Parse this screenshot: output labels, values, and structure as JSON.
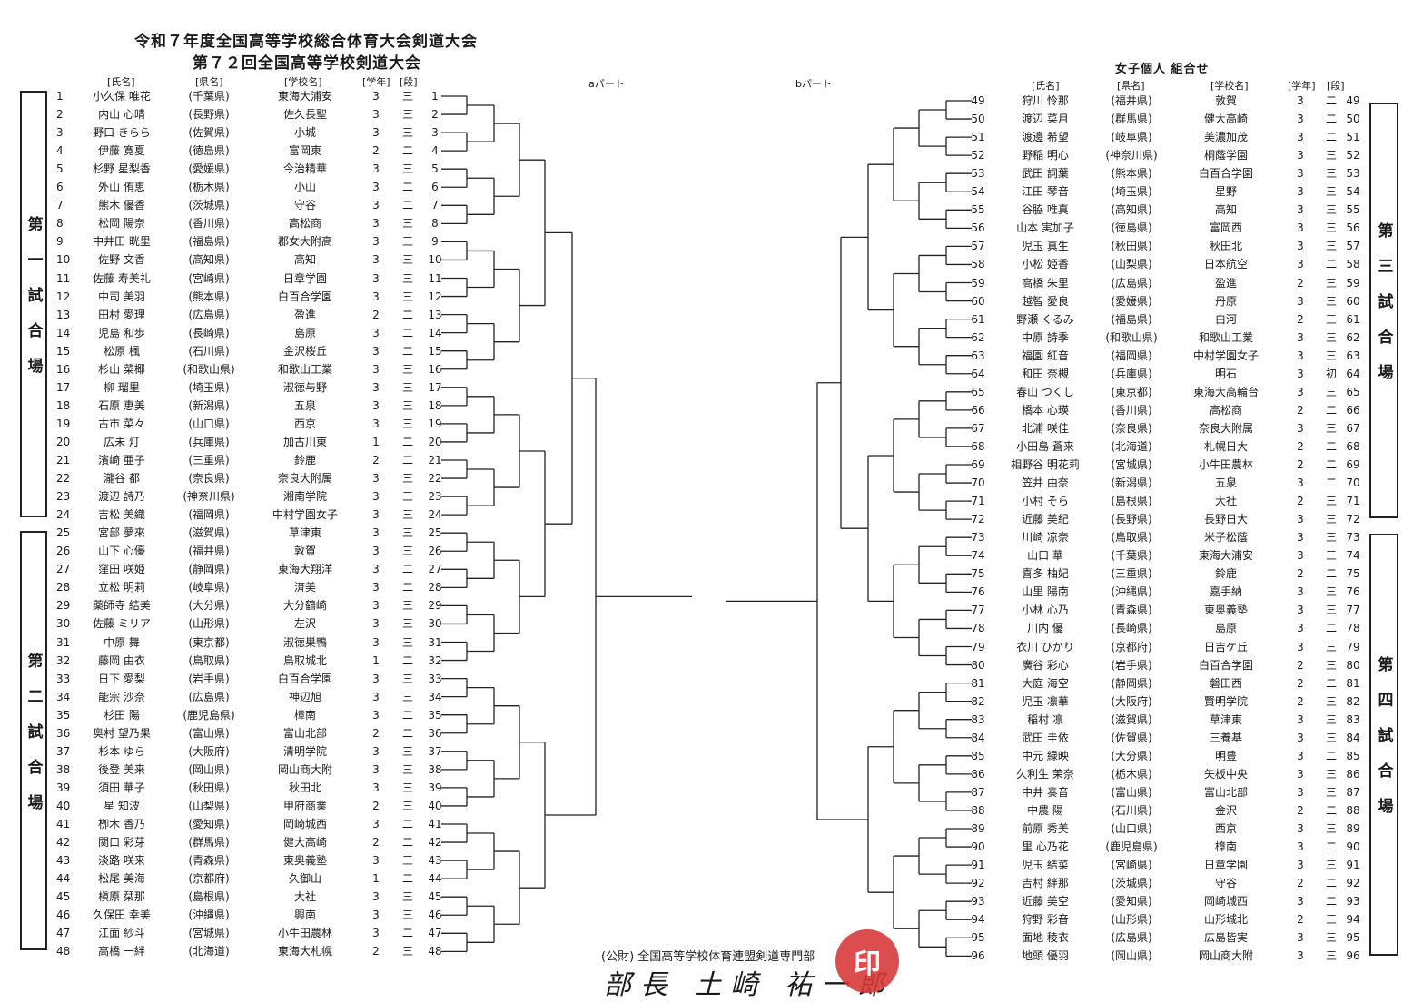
{
  "title_line1": "令和７年度全国高等学校総合体育大会剣道大会",
  "title_line2": "第７２回全国高等学校剣道大会",
  "right_title": "女子個人 組合せ",
  "headers": {
    "name": "[氏名]",
    "pref": "[県名]",
    "school": "[学校名]",
    "grade": "[学年]",
    "dan": "[段]"
  },
  "part_a": "aパート",
  "part_b": "bパート",
  "courts": [
    "第一試合場",
    "第二試合場",
    "第三試合場",
    "第四試合場"
  ],
  "footer": "(公財) 全国高等学校体育連盟剣道専門部",
  "signature": "部長 土崎 祐一郎",
  "entries": [
    {
      "n": "1",
      "name": "小久保 唯花",
      "pref": "(千葉県)",
      "school": "東海大浦安",
      "grade": "3",
      "dan": "三"
    },
    {
      "n": "2",
      "name": "内山 心晴",
      "pref": "(長野県)",
      "school": "佐久長聖",
      "grade": "3",
      "dan": "三"
    },
    {
      "n": "3",
      "name": "野口 きらら",
      "pref": "(佐賀県)",
      "school": "小城",
      "grade": "3",
      "dan": "三"
    },
    {
      "n": "4",
      "name": "伊藤 寛夏",
      "pref": "(徳島県)",
      "school": "富岡東",
      "grade": "2",
      "dan": "二"
    },
    {
      "n": "5",
      "name": "杉野 星梨香",
      "pref": "(愛媛県)",
      "school": "今治精華",
      "grade": "3",
      "dan": "三"
    },
    {
      "n": "6",
      "name": "外山 侑恵",
      "pref": "(栃木県)",
      "school": "小山",
      "grade": "3",
      "dan": "二"
    },
    {
      "n": "7",
      "name": "熊木 優香",
      "pref": "(茨城県)",
      "school": "守谷",
      "grade": "3",
      "dan": "二"
    },
    {
      "n": "8",
      "name": "松岡 陽奈",
      "pref": "(香川県)",
      "school": "高松商",
      "grade": "3",
      "dan": "三"
    },
    {
      "n": "9",
      "name": "中井田 晄里",
      "pref": "(福島県)",
      "school": "郡女大附高",
      "grade": "3",
      "dan": "三"
    },
    {
      "n": "10",
      "name": "佐野 文香",
      "pref": "(高知県)",
      "school": "高知",
      "grade": "3",
      "dan": "三"
    },
    {
      "n": "11",
      "name": "佐藤 寿美礼",
      "pref": "(宮崎県)",
      "school": "日章学園",
      "grade": "3",
      "dan": "三"
    },
    {
      "n": "12",
      "name": "中司 美羽",
      "pref": "(熊本県)",
      "school": "白百合学園",
      "grade": "3",
      "dan": "三"
    },
    {
      "n": "13",
      "name": "田村 愛理",
      "pref": "(広島県)",
      "school": "盈進",
      "grade": "2",
      "dan": "二"
    },
    {
      "n": "14",
      "name": "児島 和歩",
      "pref": "(長崎県)",
      "school": "島原",
      "grade": "3",
      "dan": "二"
    },
    {
      "n": "15",
      "name": "松原 楓",
      "pref": "(石川県)",
      "school": "金沢桜丘",
      "grade": "3",
      "dan": "二"
    },
    {
      "n": "16",
      "name": "杉山 菜椰",
      "pref": "(和歌山県)",
      "school": "和歌山工業",
      "grade": "3",
      "dan": "三"
    },
    {
      "n": "17",
      "name": "柳 瑠里",
      "pref": "(埼玉県)",
      "school": "淑徳与野",
      "grade": "3",
      "dan": "三"
    },
    {
      "n": "18",
      "name": "石原 恵美",
      "pref": "(新潟県)",
      "school": "五泉",
      "grade": "3",
      "dan": "三"
    },
    {
      "n": "19",
      "name": "古市 菜々",
      "pref": "(山口県)",
      "school": "西京",
      "grade": "3",
      "dan": "三"
    },
    {
      "n": "20",
      "name": "広未 灯",
      "pref": "(兵庫県)",
      "school": "加古川東",
      "grade": "1",
      "dan": "二"
    },
    {
      "n": "21",
      "name": "濱崎 亜子",
      "pref": "(三重県)",
      "school": "鈴鹿",
      "grade": "2",
      "dan": "二"
    },
    {
      "n": "22",
      "name": "瀧谷 都",
      "pref": "(奈良県)",
      "school": "奈良大附属",
      "grade": "3",
      "dan": "三"
    },
    {
      "n": "23",
      "name": "渡辺 詩乃",
      "pref": "(神奈川県)",
      "school": "湘南学院",
      "grade": "3",
      "dan": "三"
    },
    {
      "n": "24",
      "name": "吉松 美織",
      "pref": "(福岡県)",
      "school": "中村学園女子",
      "grade": "3",
      "dan": "三"
    },
    {
      "n": "25",
      "name": "宮部 夢來",
      "pref": "(滋賀県)",
      "school": "草津東",
      "grade": "3",
      "dan": "三"
    },
    {
      "n": "26",
      "name": "山下 心優",
      "pref": "(福井県)",
      "school": "敦賀",
      "grade": "3",
      "dan": "三"
    },
    {
      "n": "27",
      "name": "窪田 咲姫",
      "pref": "(静岡県)",
      "school": "東海大翔洋",
      "grade": "3",
      "dan": "二"
    },
    {
      "n": "28",
      "name": "立松 明莉",
      "pref": "(岐阜県)",
      "school": "済美",
      "grade": "3",
      "dan": "二"
    },
    {
      "n": "29",
      "name": "薬師寺 結美",
      "pref": "(大分県)",
      "school": "大分鶴崎",
      "grade": "3",
      "dan": "三"
    },
    {
      "n": "30",
      "name": "佐藤 ミリア",
      "pref": "(山形県)",
      "school": "左沢",
      "grade": "3",
      "dan": "三"
    },
    {
      "n": "31",
      "name": "中原 舞",
      "pref": "(東京都)",
      "school": "淑徳巣鴨",
      "grade": "3",
      "dan": "三"
    },
    {
      "n": "32",
      "name": "藤岡 由衣",
      "pref": "(鳥取県)",
      "school": "鳥取城北",
      "grade": "1",
      "dan": "二"
    },
    {
      "n": "33",
      "name": "日下 愛梨",
      "pref": "(岩手県)",
      "school": "白百合学園",
      "grade": "3",
      "dan": "三"
    },
    {
      "n": "34",
      "name": "能宗 沙奈",
      "pref": "(広島県)",
      "school": "神辺旭",
      "grade": "3",
      "dan": "三"
    },
    {
      "n": "35",
      "name": "杉田 陽",
      "pref": "(鹿児島県)",
      "school": "樟南",
      "grade": "3",
      "dan": "二"
    },
    {
      "n": "36",
      "name": "奥村 望乃果",
      "pref": "(富山県)",
      "school": "富山北部",
      "grade": "2",
      "dan": "二"
    },
    {
      "n": "37",
      "name": "杉本 ゆら",
      "pref": "(大阪府)",
      "school": "清明学院",
      "grade": "3",
      "dan": "三"
    },
    {
      "n": "38",
      "name": "後登 美来",
      "pref": "(岡山県)",
      "school": "岡山商大附",
      "grade": "3",
      "dan": "三"
    },
    {
      "n": "39",
      "name": "須田 華子",
      "pref": "(秋田県)",
      "school": "秋田北",
      "grade": "3",
      "dan": "三"
    },
    {
      "n": "40",
      "name": "星 知波",
      "pref": "(山梨県)",
      "school": "甲府商業",
      "grade": "2",
      "dan": "三"
    },
    {
      "n": "41",
      "name": "栁木 香乃",
      "pref": "(愛知県)",
      "school": "岡崎城西",
      "grade": "3",
      "dan": "二"
    },
    {
      "n": "42",
      "name": "関口 彩芽",
      "pref": "(群馬県)",
      "school": "健大高崎",
      "grade": "2",
      "dan": "二"
    },
    {
      "n": "43",
      "name": "淡路 咲来",
      "pref": "(青森県)",
      "school": "東奥義塾",
      "grade": "3",
      "dan": "三"
    },
    {
      "n": "44",
      "name": "松尾 美海",
      "pref": "(京都府)",
      "school": "久御山",
      "grade": "1",
      "dan": "二"
    },
    {
      "n": "45",
      "name": "槇原 栞那",
      "pref": "(島根県)",
      "school": "大社",
      "grade": "3",
      "dan": "三"
    },
    {
      "n": "46",
      "name": "久保田 幸美",
      "pref": "(沖縄県)",
      "school": "興南",
      "grade": "3",
      "dan": "三"
    },
    {
      "n": "47",
      "name": "江面 紗斗",
      "pref": "(宮城県)",
      "school": "小牛田農林",
      "grade": "3",
      "dan": "二"
    },
    {
      "n": "48",
      "name": "高橋 一絆",
      "pref": "(北海道)",
      "school": "東海大札幌",
      "grade": "2",
      "dan": "三"
    },
    {
      "n": "49",
      "name": "狩川 怜那",
      "pref": "(福井県)",
      "school": "敦賀",
      "grade": "3",
      "dan": "二"
    },
    {
      "n": "50",
      "name": "渡辺 菜月",
      "pref": "(群馬県)",
      "school": "健大高崎",
      "grade": "3",
      "dan": "二"
    },
    {
      "n": "51",
      "name": "渡邊 希望",
      "pref": "(岐阜県)",
      "school": "美濃加茂",
      "grade": "3",
      "dan": "二"
    },
    {
      "n": "52",
      "name": "野稲 明心",
      "pref": "(神奈川県)",
      "school": "桐蔭学園",
      "grade": "3",
      "dan": "三"
    },
    {
      "n": "53",
      "name": "武田 詞葉",
      "pref": "(熊本県)",
      "school": "白百合学園",
      "grade": "3",
      "dan": "三"
    },
    {
      "n": "54",
      "name": "江田 琴音",
      "pref": "(埼玉県)",
      "school": "星野",
      "grade": "3",
      "dan": "三"
    },
    {
      "n": "55",
      "name": "谷脇 唯真",
      "pref": "(高知県)",
      "school": "高知",
      "grade": "3",
      "dan": "三"
    },
    {
      "n": "56",
      "name": "山本 実加子",
      "pref": "(徳島県)",
      "school": "富岡西",
      "grade": "3",
      "dan": "三"
    },
    {
      "n": "57",
      "name": "児玉 真生",
      "pref": "(秋田県)",
      "school": "秋田北",
      "grade": "3",
      "dan": "三"
    },
    {
      "n": "58",
      "name": "小松 姫香",
      "pref": "(山梨県)",
      "school": "日本航空",
      "grade": "3",
      "dan": "二"
    },
    {
      "n": "59",
      "name": "高橋 朱里",
      "pref": "(広島県)",
      "school": "盈進",
      "grade": "2",
      "dan": "三"
    },
    {
      "n": "60",
      "name": "越智 愛良",
      "pref": "(愛媛県)",
      "school": "丹原",
      "grade": "3",
      "dan": "三"
    },
    {
      "n": "61",
      "name": "野瀬 くるみ",
      "pref": "(福島県)",
      "school": "白河",
      "grade": "2",
      "dan": "三"
    },
    {
      "n": "62",
      "name": "中原 詩季",
      "pref": "(和歌山県)",
      "school": "和歌山工業",
      "grade": "3",
      "dan": "三"
    },
    {
      "n": "63",
      "name": "福園 紅音",
      "pref": "(福岡県)",
      "school": "中村学園女子",
      "grade": "3",
      "dan": "三"
    },
    {
      "n": "64",
      "name": "和田 奈槻",
      "pref": "(兵庫県)",
      "school": "明石",
      "grade": "3",
      "dan": "初"
    },
    {
      "n": "65",
      "name": "春山 つくし",
      "pref": "(東京都)",
      "school": "東海大高輪台",
      "grade": "3",
      "dan": "三"
    },
    {
      "n": "66",
      "name": "橋本 心瑛",
      "pref": "(香川県)",
      "school": "高松商",
      "grade": "2",
      "dan": "二"
    },
    {
      "n": "67",
      "name": "北浦 咲佳",
      "pref": "(奈良県)",
      "school": "奈良大附属",
      "grade": "3",
      "dan": "三"
    },
    {
      "n": "68",
      "name": "小田島 蒼来",
      "pref": "(北海道)",
      "school": "札幌日大",
      "grade": "2",
      "dan": "二"
    },
    {
      "n": "69",
      "name": "相野谷 明花莉",
      "pref": "(宮城県)",
      "school": "小牛田農林",
      "grade": "2",
      "dan": "二"
    },
    {
      "n": "70",
      "name": "笠井 由奈",
      "pref": "(新潟県)",
      "school": "五泉",
      "grade": "3",
      "dan": "二"
    },
    {
      "n": "71",
      "name": "小村 そら",
      "pref": "(島根県)",
      "school": "大社",
      "grade": "2",
      "dan": "三"
    },
    {
      "n": "72",
      "name": "近藤 美紀",
      "pref": "(長野県)",
      "school": "長野日大",
      "grade": "3",
      "dan": "三"
    },
    {
      "n": "73",
      "name": "川崎 凉奈",
      "pref": "(鳥取県)",
      "school": "米子松蔭",
      "grade": "3",
      "dan": "三"
    },
    {
      "n": "74",
      "name": "山口 華",
      "pref": "(千葉県)",
      "school": "東海大浦安",
      "grade": "3",
      "dan": "三"
    },
    {
      "n": "75",
      "name": "喜多 柚妃",
      "pref": "(三重県)",
      "school": "鈴鹿",
      "grade": "2",
      "dan": "二"
    },
    {
      "n": "76",
      "name": "山里 陽南",
      "pref": "(沖縄県)",
      "school": "嘉手納",
      "grade": "3",
      "dan": "三"
    },
    {
      "n": "77",
      "name": "小林 心乃",
      "pref": "(青森県)",
      "school": "東奥義塾",
      "grade": "3",
      "dan": "三"
    },
    {
      "n": "78",
      "name": "川内 優",
      "pref": "(長崎県)",
      "school": "島原",
      "grade": "3",
      "dan": "二"
    },
    {
      "n": "79",
      "name": "衣川 ひかり",
      "pref": "(京都府)",
      "school": "日吉ケ丘",
      "grade": "3",
      "dan": "三"
    },
    {
      "n": "80",
      "name": "廣谷 彩心",
      "pref": "(岩手県)",
      "school": "白百合学園",
      "grade": "2",
      "dan": "三"
    },
    {
      "n": "81",
      "name": "大庭 海空",
      "pref": "(静岡県)",
      "school": "磐田西",
      "grade": "2",
      "dan": "二"
    },
    {
      "n": "82",
      "name": "児玉 凛華",
      "pref": "(大阪府)",
      "school": "賢明学院",
      "grade": "2",
      "dan": "三"
    },
    {
      "n": "83",
      "name": "稲村 凛",
      "pref": "(滋賀県)",
      "school": "草津東",
      "grade": "3",
      "dan": "三"
    },
    {
      "n": "84",
      "name": "武田 圭依",
      "pref": "(佐賀県)",
      "school": "三養基",
      "grade": "3",
      "dan": "三"
    },
    {
      "n": "85",
      "name": "中元 緑映",
      "pref": "(大分県)",
      "school": "明豊",
      "grade": "3",
      "dan": "二"
    },
    {
      "n": "86",
      "name": "久利生 茉奈",
      "pref": "(栃木県)",
      "school": "矢板中央",
      "grade": "3",
      "dan": "三"
    },
    {
      "n": "87",
      "name": "中井 奏音",
      "pref": "(富山県)",
      "school": "富山北部",
      "grade": "3",
      "dan": "三"
    },
    {
      "n": "88",
      "name": "中農 陽",
      "pref": "(石川県)",
      "school": "金沢",
      "grade": "2",
      "dan": "二"
    },
    {
      "n": "89",
      "name": "前原 秀美",
      "pref": "(山口県)",
      "school": "西京",
      "grade": "3",
      "dan": "三"
    },
    {
      "n": "90",
      "name": "里 心乃花",
      "pref": "(鹿児島県)",
      "school": "樟南",
      "grade": "3",
      "dan": "二"
    },
    {
      "n": "91",
      "name": "児玉 結菜",
      "pref": "(宮崎県)",
      "school": "日章学園",
      "grade": "3",
      "dan": "三"
    },
    {
      "n": "92",
      "name": "吉村 絆那",
      "pref": "(茨城県)",
      "school": "守谷",
      "grade": "2",
      "dan": "二"
    },
    {
      "n": "93",
      "name": "近藤 美空",
      "pref": "(愛知県)",
      "school": "岡崎城西",
      "grade": "3",
      "dan": "二"
    },
    {
      "n": "94",
      "name": "狩野 彩音",
      "pref": "(山形県)",
      "school": "山形城北",
      "grade": "2",
      "dan": "三"
    },
    {
      "n": "95",
      "name": "面地 稜衣",
      "pref": "(広島県)",
      "school": "広島皆実",
      "grade": "3",
      "dan": "三"
    },
    {
      "n": "96",
      "name": "地頭 優羽",
      "pref": "(岡山県)",
      "school": "岡山商大附",
      "grade": "3",
      "dan": "三"
    }
  ]
}
